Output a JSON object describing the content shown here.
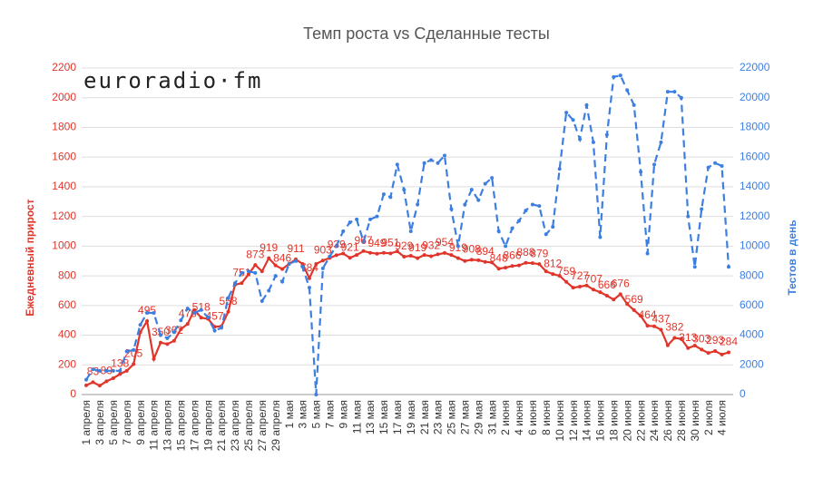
{
  "chart_data": {
    "type": "line",
    "title": "Темп роста vs Сделанные тесты",
    "logo": "euroradio·fm",
    "ylabel": "Ежедневный прирост",
    "y2label": "Тестов в день",
    "categories": [
      "1 апреля",
      null,
      "3 апреля",
      null,
      "5 апреля",
      null,
      "7 апреля",
      null,
      "9 апреля",
      null,
      "11 апреля",
      null,
      "13 апреля",
      null,
      "15 апреля",
      null,
      "17 апреля",
      null,
      "19 апреля",
      null,
      "21 апреля",
      null,
      "23 апреля",
      null,
      "25 апреля",
      null,
      "27 апреля",
      null,
      "29 апреля",
      null,
      "1 мая",
      null,
      "3 мая",
      null,
      "5 мая",
      null,
      "7 мая",
      null,
      "9 мая",
      null,
      "11 мая",
      null,
      "13 мая",
      null,
      "15 мая",
      null,
      "17 мая",
      null,
      "19 мая",
      null,
      "21 мая",
      null,
      "23 мая",
      null,
      "25 мая",
      null,
      "27 мая",
      null,
      "29 мая",
      null,
      "31 мая",
      null,
      "2 июня",
      null,
      "4 июня",
      null,
      "6 июня",
      null,
      "8 июня",
      null,
      "10 июня",
      null,
      "12 июня",
      null,
      "14 июня",
      null,
      "16 июня",
      null,
      "18 июня",
      null,
      "20 июня",
      null,
      "22 июня",
      null,
      "24 июня",
      null,
      "26 июня",
      null,
      "28 июня",
      null,
      "30 июня",
      null,
      "2 июля",
      null,
      "4 июля",
      null
    ],
    "series": [
      {
        "color": "#e0352b",
        "axis": "y",
        "dashed": false,
        "labels": true,
        "values": [
          62,
          83,
          60,
          89,
          110,
          138,
          160,
          205,
          420,
          495,
          240,
          350,
          340,
          362,
          440,
          476,
          570,
          518,
          510,
          457,
          460,
          558,
          740,
          751,
          810,
          873,
          830,
          919,
          870,
          846,
          880,
          911,
          880,
          784,
          880,
          903,
          920,
          939,
          950,
          921,
          940,
          967,
          955,
          949,
          955,
          951,
          965,
          929,
          935,
          919,
          940,
          932,
          945,
          954,
          940,
          919,
          900,
          908,
          905,
          894,
          890,
          848,
          855,
          866,
          870,
          888,
          885,
          879,
          830,
          812,
          800,
          759,
          720,
          727,
          735,
          707,
          690,
          666,
          640,
          676,
          610,
          569,
          530,
          464,
          460,
          437,
          332,
          382,
          375,
          313,
          330,
          303,
          280,
          293,
          270,
          284
        ]
      },
      {
        "color": "#3d7fe0",
        "axis": "y2",
        "dashed": true,
        "labels": false,
        "values": [
          1000,
          1700,
          1600,
          1600,
          1600,
          1600,
          2900,
          3000,
          4700,
          5500,
          5500,
          4000,
          3800,
          4200,
          5000,
          5800,
          5500,
          5700,
          5200,
          4300,
          4500,
          6500,
          7500,
          8200,
          8300,
          8200,
          6300,
          7000,
          8000,
          7600,
          8800,
          9000,
          8600,
          7200,
          0,
          8500,
          9300,
          10000,
          11000,
          11600,
          11800,
          10300,
          11800,
          12000,
          13500,
          13300,
          15500,
          13800,
          11000,
          12800,
          15600,
          15800,
          15600,
          16100,
          12500,
          10000,
          12800,
          13800,
          13100,
          14200,
          14600,
          11000,
          10000,
          11200,
          11700,
          12400,
          12800,
          12700,
          10800,
          11300,
          15200,
          19000,
          18500,
          17200,
          19500,
          17000,
          10600,
          17500,
          21400,
          21500,
          20500,
          19500,
          15000,
          9500,
          15500,
          17000,
          20400,
          20400,
          20000,
          12000,
          8600,
          12500,
          15300,
          15600,
          15400,
          8600
        ]
      }
    ],
    "ylim": [
      0,
      2200
    ],
    "yticks": [
      0,
      200,
      400,
      600,
      800,
      1000,
      1200,
      1400,
      1600,
      1800,
      2000,
      2200
    ],
    "y2lim": [
      0,
      22000
    ],
    "y2ticks": [
      0,
      2000,
      4000,
      6000,
      8000,
      10000,
      12000,
      14000,
      16000,
      18000,
      20000,
      22000
    ],
    "ycolor": "#e0352b",
    "y2color": "#3d7fe0",
    "grid": true
  }
}
